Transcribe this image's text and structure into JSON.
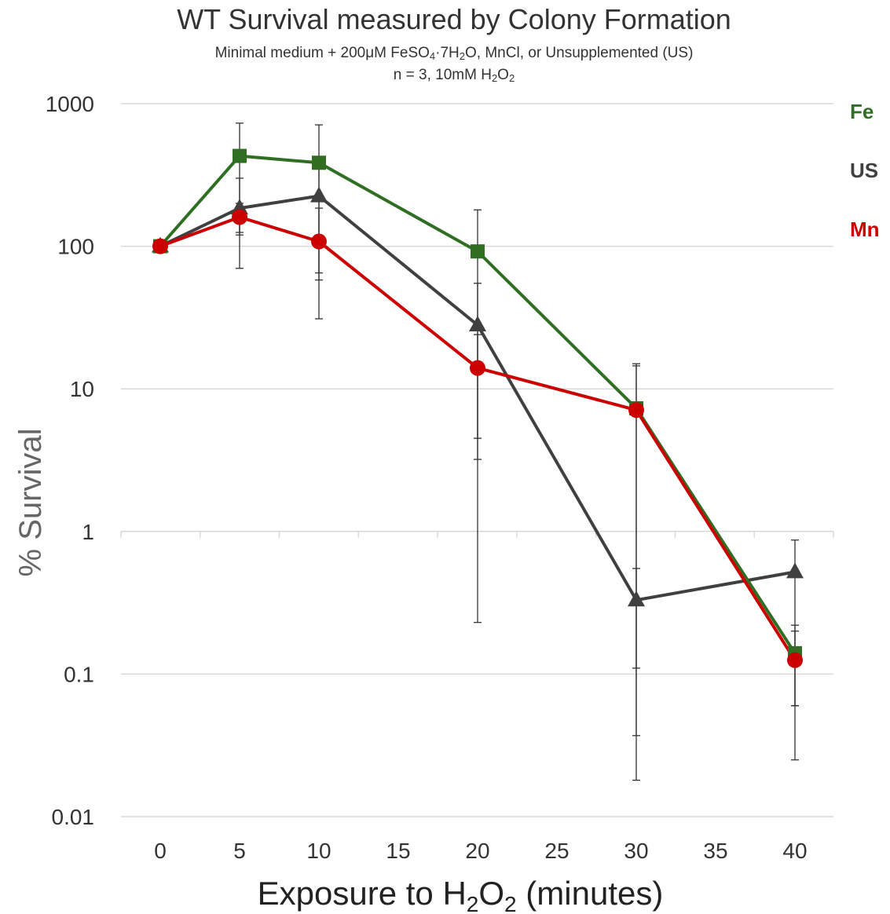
{
  "chart_data": {
    "type": "line",
    "title": "WT Survival measured by Colony Formation",
    "subtitle_line1_parts": [
      "Minimal medium + 200μM FeSO",
      "4",
      "·7H",
      "2",
      "O, MnCl, or Unsupplemented (US)"
    ],
    "subtitle_line2_parts": [
      "n = 3, 10mM H",
      "2",
      "O",
      "2"
    ],
    "xlabel_parts": [
      "Exposure to H",
      "2",
      "O",
      "2",
      " (minutes)"
    ],
    "ylabel": "% Survival",
    "y_scale": "log",
    "ylim": [
      0.01,
      1000
    ],
    "xlim": [
      -2.5,
      42.5
    ],
    "y_ticks": [
      1000,
      100,
      10,
      1,
      0.1,
      0.01
    ],
    "y_tick_labels": [
      "1000",
      "100",
      "10",
      "1",
      "0.1",
      "0.01"
    ],
    "x_ticks": [
      0,
      5,
      10,
      15,
      20,
      25,
      30,
      35,
      40
    ],
    "x_tick_labels": [
      "0",
      "5",
      "10",
      "15",
      "20",
      "25",
      "30",
      "35",
      "40"
    ],
    "grid": "horizontal",
    "legend_placement": "right",
    "x": [
      0,
      5,
      10,
      20,
      30,
      40
    ],
    "series": [
      {
        "name": "Fe",
        "color": "#2f6e23",
        "marker": "square",
        "values": [
          100,
          430,
          385,
          92,
          7.3,
          0.14
        ],
        "err_low": [
          100,
          125,
          65,
          4.5,
          0.11,
          0.06
        ],
        "err_high": [
          100,
          730,
          710,
          180,
          14.5,
          0.22
        ]
      },
      {
        "name": "US",
        "color": "#404040",
        "marker": "triangle",
        "values": [
          100,
          185,
          225,
          28,
          0.33,
          0.52
        ],
        "err_low": [
          100,
          70,
          58,
          0.23,
          0.018,
          0.025
        ],
        "err_high": [
          100,
          300,
          400,
          55,
          0.55,
          0.87
        ]
      },
      {
        "name": "Mn",
        "color": "#cc0000",
        "marker": "circle",
        "values": [
          100,
          160,
          108,
          14,
          7.1,
          0.125
        ],
        "err_low": [
          100,
          120,
          31,
          3.2,
          0.037,
          0.06
        ],
        "err_high": [
          100,
          200,
          185,
          24,
          15,
          0.2
        ]
      }
    ]
  }
}
